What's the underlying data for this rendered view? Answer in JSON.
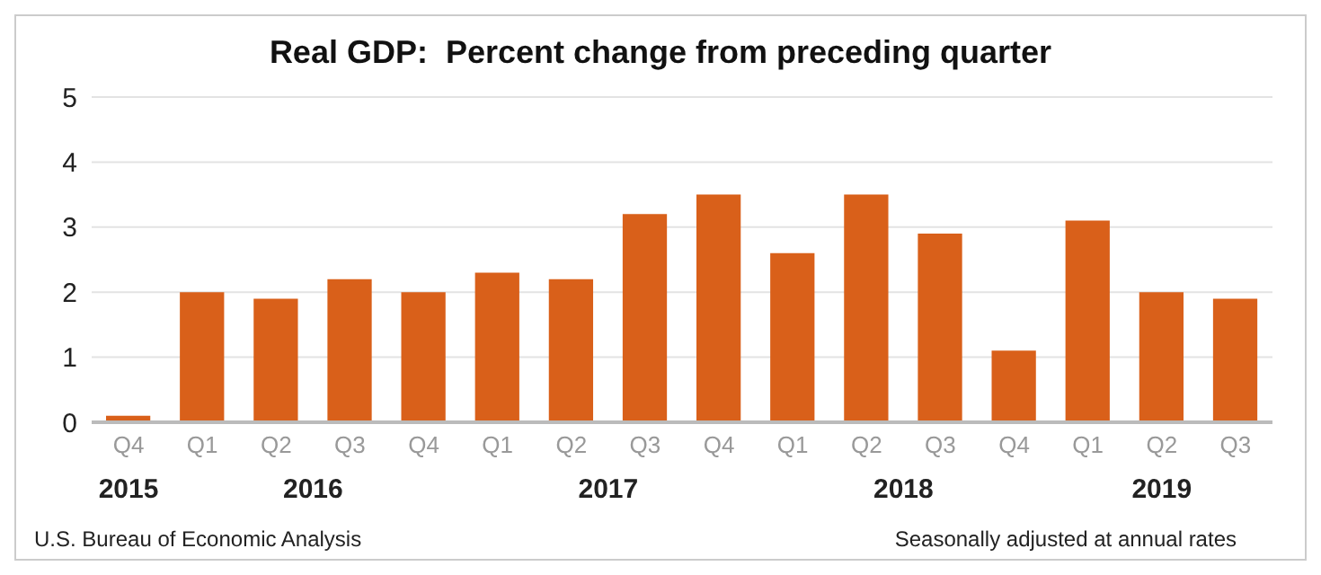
{
  "chart_data": {
    "type": "bar",
    "title": "Real GDP:  Percent change from preceding quarter",
    "categories": [
      "Q4",
      "Q1",
      "Q2",
      "Q3",
      "Q4",
      "Q1",
      "Q2",
      "Q3",
      "Q4",
      "Q1",
      "Q2",
      "Q3",
      "Q4",
      "Q1",
      "Q2",
      "Q3"
    ],
    "values": [
      0.1,
      2.0,
      1.9,
      2.2,
      2.0,
      2.3,
      2.2,
      3.2,
      3.5,
      2.6,
      3.5,
      2.9,
      1.1,
      3.1,
      2.0,
      1.9
    ],
    "color": "#d9601a",
    "ylim": [
      0,
      5
    ],
    "yticks": [
      0,
      1,
      2,
      3,
      4,
      5
    ],
    "grid": "y",
    "annotations": [
      "2015",
      "2016",
      "2017",
      "2018",
      "2019",
      "U.S. Bureau of Economic Analysis",
      "Seasonally adjusted at annual rates"
    ]
  }
}
